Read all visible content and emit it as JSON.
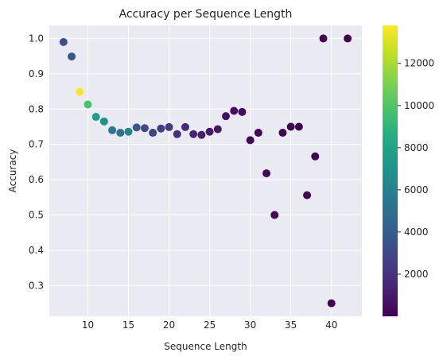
{
  "chart_data": {
    "type": "scatter",
    "title": "Accuracy per Sequence Length",
    "xlabel": "Sequence Length",
    "ylabel": "Accuracy",
    "xlim": [
      5.25,
      43.75
    ],
    "ylim": [
      0.213,
      1.037
    ],
    "xticks": [
      10,
      15,
      20,
      25,
      30,
      35,
      40
    ],
    "yticks": [
      0.3,
      0.4,
      0.5,
      0.6,
      0.7,
      0.8,
      0.9,
      1.0
    ],
    "grid": true,
    "colorbar": {
      "colormap": "viridis",
      "range": [
        0,
        13800
      ],
      "ticks": [
        2000,
        4000,
        6000,
        8000,
        10000,
        12000
      ]
    },
    "points": [
      {
        "x": 7,
        "y": 0.99,
        "c": 3300
      },
      {
        "x": 8,
        "y": 0.949,
        "c": 3800
      },
      {
        "x": 9,
        "y": 0.849,
        "c": 13700
      },
      {
        "x": 10,
        "y": 0.813,
        "c": 9800
      },
      {
        "x": 11,
        "y": 0.778,
        "c": 7600
      },
      {
        "x": 12,
        "y": 0.765,
        "c": 6900
      },
      {
        "x": 13,
        "y": 0.74,
        "c": 5600
      },
      {
        "x": 14,
        "y": 0.733,
        "c": 5200
      },
      {
        "x": 15,
        "y": 0.736,
        "c": 6300
      },
      {
        "x": 16,
        "y": 0.748,
        "c": 3900
      },
      {
        "x": 17,
        "y": 0.746,
        "c": 3100
      },
      {
        "x": 18,
        "y": 0.733,
        "c": 2700
      },
      {
        "x": 19,
        "y": 0.745,
        "c": 2500
      },
      {
        "x": 20,
        "y": 0.749,
        "c": 2300
      },
      {
        "x": 21,
        "y": 0.729,
        "c": 1900
      },
      {
        "x": 22,
        "y": 0.749,
        "c": 1700
      },
      {
        "x": 23,
        "y": 0.729,
        "c": 1400
      },
      {
        "x": 24,
        "y": 0.727,
        "c": 1200
      },
      {
        "x": 25,
        "y": 0.736,
        "c": 1000
      },
      {
        "x": 26,
        "y": 0.743,
        "c": 800
      },
      {
        "x": 27,
        "y": 0.78,
        "c": 600
      },
      {
        "x": 28,
        "y": 0.795,
        "c": 450
      },
      {
        "x": 29,
        "y": 0.792,
        "c": 350
      },
      {
        "x": 30,
        "y": 0.712,
        "c": 250
      },
      {
        "x": 31,
        "y": 0.733,
        "c": 180
      },
      {
        "x": 32,
        "y": 0.618,
        "c": 120
      },
      {
        "x": 33,
        "y": 0.5,
        "c": 80
      },
      {
        "x": 34,
        "y": 0.733,
        "c": 60
      },
      {
        "x": 35,
        "y": 0.75,
        "c": 40
      },
      {
        "x": 36,
        "y": 0.75,
        "c": 30
      },
      {
        "x": 37,
        "y": 0.556,
        "c": 20
      },
      {
        "x": 38,
        "y": 0.666,
        "c": 15
      },
      {
        "x": 39,
        "y": 1.0,
        "c": 10
      },
      {
        "x": 40,
        "y": 0.25,
        "c": 5
      },
      {
        "x": 42,
        "y": 1.0,
        "c": 3
      }
    ]
  }
}
